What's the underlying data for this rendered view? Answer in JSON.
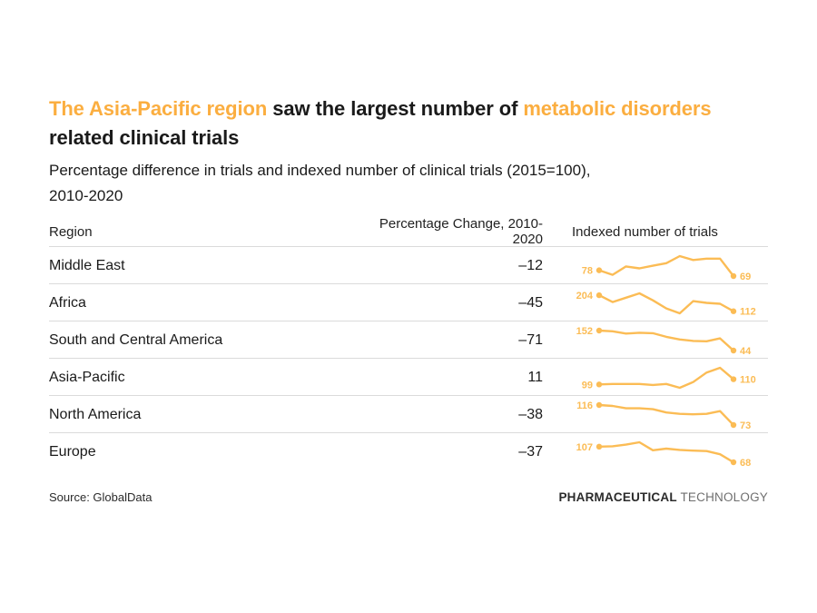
{
  "colors": {
    "accent": "#FBAE40",
    "spark": "#FBBC55",
    "divider": "#DBDBDB",
    "text": "#1A1A1A",
    "logo_gray": "#6F6F6F"
  },
  "title": {
    "segments": [
      {
        "text": "The Asia-Pacific region",
        "highlight": true
      },
      {
        "text": " saw the largest number of ",
        "highlight": false
      },
      {
        "text": "metabolic disorders",
        "highlight": true
      },
      {
        "text": " related clinical trials",
        "highlight": false
      }
    ]
  },
  "subtitle": {
    "line1": "Percentage difference in trials and indexed number of clinical trials (2015=100),",
    "line2": "2010-2020"
  },
  "footer": {
    "source": "Source: GlobalData",
    "logo_bold": "PHARMACEUTICAL",
    "logo_light": "TECHNOLOGY"
  },
  "chart_data": {
    "type": "table",
    "title": "The Asia-Pacific region saw the largest number of metabolic disorders related clinical trials",
    "subtitle": "Percentage difference in trials and indexed number of clinical trials (2015=100), 2010-2020",
    "columns": [
      "Region",
      "Percentage Change, 2010-2020",
      "Indexed number of trials"
    ],
    "sparkline_type": "line",
    "sparkline_x_range": [
      2010,
      2020
    ],
    "sparkline_index_base": "2015=100",
    "rows": [
      {
        "region": "Middle East",
        "percentage_change": -12,
        "pct_display": "–12",
        "indexed_start": 78,
        "indexed_end": 69,
        "indexed_trials_sparkline": [
          78,
          71,
          84,
          81,
          85,
          89,
          100,
          94,
          96,
          96,
          69
        ]
      },
      {
        "region": "Africa",
        "percentage_change": -45,
        "pct_display": "–45",
        "indexed_start": 204,
        "indexed_end": 112,
        "indexed_trials_sparkline": [
          204,
          165,
          190,
          215,
          175,
          128,
          100,
          170,
          160,
          155,
          112
        ]
      },
      {
        "region": "South and Central America",
        "percentage_change": -71,
        "pct_display": "–71",
        "indexed_start": 152,
        "indexed_end": 44,
        "indexed_trials_sparkline": [
          152,
          148,
          136,
          140,
          138,
          118,
          104,
          96,
          94,
          110,
          44
        ]
      },
      {
        "region": "Asia-Pacific",
        "percentage_change": 11,
        "pct_display": "11",
        "indexed_start": 99,
        "indexed_end": 110,
        "indexed_trials_sparkline": [
          99,
          100,
          100,
          100,
          98,
          100,
          92,
          104,
          124,
          134,
          110
        ]
      },
      {
        "region": "North America",
        "percentage_change": -38,
        "pct_display": "–38",
        "indexed_start": 116,
        "indexed_end": 73,
        "indexed_trials_sparkline": [
          116,
          114,
          109,
          109,
          107,
          100,
          97,
          96,
          97,
          103,
          73
        ]
      },
      {
        "region": "Europe",
        "percentage_change": -37,
        "pct_display": "–37",
        "indexed_start": 107,
        "indexed_end": 68,
        "indexed_trials_sparkline": [
          107,
          108,
          112,
          118,
          98,
          102,
          99,
          97,
          96,
          88,
          68
        ]
      }
    ],
    "source": "Source: GlobalData"
  }
}
